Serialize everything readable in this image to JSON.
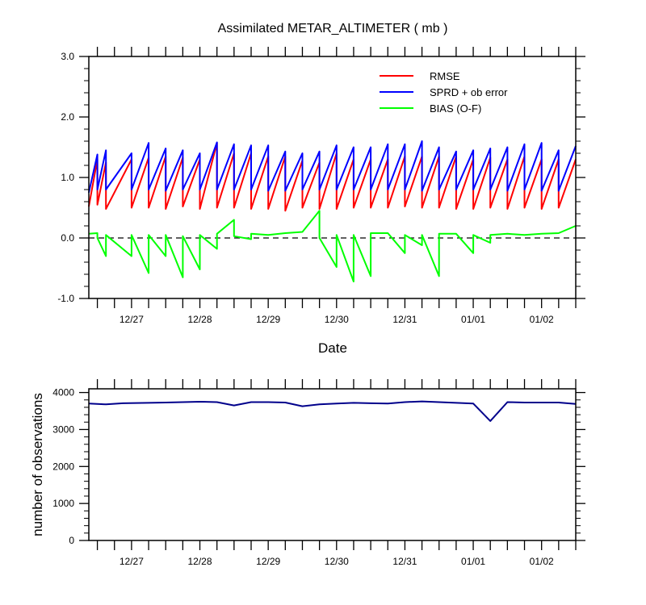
{
  "chart_data": [
    {
      "type": "line",
      "title": "Assimilated METAR_ALTIMETER ( mb )",
      "xlabel": "Date",
      "ylabel": "",
      "ylim": [
        -1.0,
        3.0
      ],
      "yticks": [
        "-1.0",
        "0.0",
        "1.0",
        "2.0",
        "3.0"
      ],
      "x_axis_type": "date",
      "xlim": [
        "2020-12-26T09:00",
        "2021-01-02T12:00"
      ],
      "xticks": [
        {
          "label": "12/27",
          "x": "2020-12-27T00:00"
        },
        {
          "label": "12/28",
          "x": "2020-12-28T00:00"
        },
        {
          "label": "12/29",
          "x": "2020-12-29T00:00"
        },
        {
          "label": "12/30",
          "x": "2020-12-30T00:00"
        },
        {
          "label": "12/31",
          "x": "2020-12-31T00:00"
        },
        {
          "label": "01/01",
          "x": "2021-01-01T00:00"
        },
        {
          "label": "01/02",
          "x": "2021-01-02T00:00"
        }
      ],
      "reference_line": {
        "y": 0.0,
        "style": "dashed"
      },
      "legend_position": "top-right",
      "series": [
        {
          "name": "RMSE",
          "color": "#ff0000",
          "points": [
            [
              "2020-12-26T09:00",
              0.52
            ],
            [
              "2020-12-26T12:00",
              1.3
            ],
            [
              "2020-12-26T12:00",
              0.55
            ],
            [
              "2020-12-26T15:00",
              1.25
            ],
            [
              "2020-12-26T15:00",
              0.48
            ],
            [
              "2020-12-27T00:00",
              1.3
            ],
            [
              "2020-12-27T00:00",
              0.5
            ],
            [
              "2020-12-27T06:00",
              1.33
            ],
            [
              "2020-12-27T06:00",
              0.5
            ],
            [
              "2020-12-27T12:00",
              1.35
            ],
            [
              "2020-12-27T12:00",
              0.48
            ],
            [
              "2020-12-27T18:00",
              1.33
            ],
            [
              "2020-12-27T18:00",
              0.52
            ],
            [
              "2020-12-28T00:00",
              1.3
            ],
            [
              "2020-12-28T00:00",
              0.48
            ],
            [
              "2020-12-28T06:00",
              1.57
            ],
            [
              "2020-12-28T06:00",
              0.5
            ],
            [
              "2020-12-28T12:00",
              1.4
            ],
            [
              "2020-12-28T12:00",
              0.5
            ],
            [
              "2020-12-28T18:00",
              1.4
            ],
            [
              "2020-12-28T18:00",
              0.48
            ],
            [
              "2020-12-29T00:00",
              1.35
            ],
            [
              "2020-12-29T00:00",
              0.48
            ],
            [
              "2020-12-29T06:00",
              1.35
            ],
            [
              "2020-12-29T06:00",
              0.45
            ],
            [
              "2020-12-29T12:00",
              1.28
            ],
            [
              "2020-12-29T12:00",
              0.5
            ],
            [
              "2020-12-29T18:00",
              1.25
            ],
            [
              "2020-12-29T18:00",
              0.48
            ],
            [
              "2020-12-30T00:00",
              1.4
            ],
            [
              "2020-12-30T00:00",
              0.48
            ],
            [
              "2020-12-30T06:00",
              1.3
            ],
            [
              "2020-12-30T06:00",
              0.5
            ],
            [
              "2020-12-30T12:00",
              1.3
            ],
            [
              "2020-12-30T12:00",
              0.5
            ],
            [
              "2020-12-30T18:00",
              1.3
            ],
            [
              "2020-12-30T18:00",
              0.5
            ],
            [
              "2020-12-31T00:00",
              1.35
            ],
            [
              "2020-12-31T00:00",
              0.52
            ],
            [
              "2020-12-31T06:00",
              1.35
            ],
            [
              "2020-12-31T06:00",
              0.5
            ],
            [
              "2020-12-31T12:00",
              1.35
            ],
            [
              "2020-12-31T12:00",
              0.5
            ],
            [
              "2020-12-31T18:00",
              1.35
            ],
            [
              "2020-12-31T18:00",
              0.48
            ],
            [
              "2021-01-01T00:00",
              1.3
            ],
            [
              "2021-01-01T00:00",
              0.48
            ],
            [
              "2021-01-01T06:00",
              1.33
            ],
            [
              "2021-01-01T06:00",
              0.5
            ],
            [
              "2021-01-01T12:00",
              1.3
            ],
            [
              "2021-01-01T12:00",
              0.48
            ],
            [
              "2021-01-01T18:00",
              1.35
            ],
            [
              "2021-01-01T18:00",
              0.5
            ],
            [
              "2021-01-02T00:00",
              1.3
            ],
            [
              "2021-01-02T00:00",
              0.48
            ],
            [
              "2021-01-02T06:00",
              1.3
            ],
            [
              "2021-01-02T06:00",
              0.5
            ],
            [
              "2021-01-02T12:00",
              1.3
            ]
          ]
        },
        {
          "name": "SPRD + ob error",
          "color": "#0000ff",
          "points": [
            [
              "2020-12-26T09:00",
              0.75
            ],
            [
              "2020-12-26T12:00",
              1.38
            ],
            [
              "2020-12-26T12:00",
              0.8
            ],
            [
              "2020-12-26T15:00",
              1.45
            ],
            [
              "2020-12-26T15:00",
              0.8
            ],
            [
              "2020-12-27T00:00",
              1.4
            ],
            [
              "2020-12-27T00:00",
              0.8
            ],
            [
              "2020-12-27T06:00",
              1.57
            ],
            [
              "2020-12-27T06:00",
              0.8
            ],
            [
              "2020-12-27T12:00",
              1.48
            ],
            [
              "2020-12-27T12:00",
              0.78
            ],
            [
              "2020-12-27T18:00",
              1.45
            ],
            [
              "2020-12-27T18:00",
              0.8
            ],
            [
              "2020-12-28T00:00",
              1.4
            ],
            [
              "2020-12-28T00:00",
              0.8
            ],
            [
              "2020-12-28T06:00",
              1.58
            ],
            [
              "2020-12-28T06:00",
              0.8
            ],
            [
              "2020-12-28T12:00",
              1.55
            ],
            [
              "2020-12-28T12:00",
              0.8
            ],
            [
              "2020-12-28T18:00",
              1.53
            ],
            [
              "2020-12-28T18:00",
              0.8
            ],
            [
              "2020-12-29T00:00",
              1.53
            ],
            [
              "2020-12-29T00:00",
              0.78
            ],
            [
              "2020-12-29T06:00",
              1.43
            ],
            [
              "2020-12-29T06:00",
              0.78
            ],
            [
              "2020-12-29T12:00",
              1.4
            ],
            [
              "2020-12-29T12:00",
              0.8
            ],
            [
              "2020-12-29T18:00",
              1.43
            ],
            [
              "2020-12-29T18:00",
              0.8
            ],
            [
              "2020-12-30T00:00",
              1.53
            ],
            [
              "2020-12-30T00:00",
              0.8
            ],
            [
              "2020-12-30T06:00",
              1.5
            ],
            [
              "2020-12-30T06:00",
              0.8
            ],
            [
              "2020-12-30T12:00",
              1.5
            ],
            [
              "2020-12-30T12:00",
              0.8
            ],
            [
              "2020-12-30T18:00",
              1.55
            ],
            [
              "2020-12-30T18:00",
              0.8
            ],
            [
              "2020-12-31T00:00",
              1.55
            ],
            [
              "2020-12-31T00:00",
              0.8
            ],
            [
              "2020-12-31T06:00",
              1.6
            ],
            [
              "2020-12-31T06:00",
              0.78
            ],
            [
              "2020-12-31T12:00",
              1.5
            ],
            [
              "2020-12-31T12:00",
              0.8
            ],
            [
              "2020-12-31T18:00",
              1.43
            ],
            [
              "2020-12-31T18:00",
              0.8
            ],
            [
              "2021-01-01T00:00",
              1.45
            ],
            [
              "2021-01-01T00:00",
              0.8
            ],
            [
              "2021-01-01T06:00",
              1.48
            ],
            [
              "2021-01-01T06:00",
              0.8
            ],
            [
              "2021-01-01T12:00",
              1.5
            ],
            [
              "2021-01-01T12:00",
              0.78
            ],
            [
              "2021-01-01T18:00",
              1.55
            ],
            [
              "2021-01-01T18:00",
              0.8
            ],
            [
              "2021-01-02T00:00",
              1.57
            ],
            [
              "2021-01-02T00:00",
              0.78
            ],
            [
              "2021-01-02T06:00",
              1.45
            ],
            [
              "2021-01-02T06:00",
              0.78
            ],
            [
              "2021-01-02T12:00",
              1.52
            ]
          ]
        },
        {
          "name": "BIAS (O-F)",
          "color": "#00ff00",
          "points": [
            [
              "2020-12-26T09:00",
              0.07
            ],
            [
              "2020-12-26T12:00",
              0.08
            ],
            [
              "2020-12-26T12:00",
              0.0
            ],
            [
              "2020-12-26T15:00",
              -0.3
            ],
            [
              "2020-12-26T15:00",
              0.05
            ],
            [
              "2020-12-27T00:00",
              -0.3
            ],
            [
              "2020-12-27T00:00",
              0.05
            ],
            [
              "2020-12-27T06:00",
              -0.58
            ],
            [
              "2020-12-27T06:00",
              0.05
            ],
            [
              "2020-12-27T12:00",
              -0.3
            ],
            [
              "2020-12-27T12:00",
              0.05
            ],
            [
              "2020-12-27T18:00",
              -0.65
            ],
            [
              "2020-12-27T18:00",
              0.03
            ],
            [
              "2020-12-28T00:00",
              -0.52
            ],
            [
              "2020-12-28T00:00",
              0.05
            ],
            [
              "2020-12-28T06:00",
              -0.18
            ],
            [
              "2020-12-28T06:00",
              0.07
            ],
            [
              "2020-12-28T12:00",
              0.3
            ],
            [
              "2020-12-28T12:00",
              0.03
            ],
            [
              "2020-12-28T18:00",
              -0.02
            ],
            [
              "2020-12-28T18:00",
              0.07
            ],
            [
              "2020-12-29T00:00",
              0.05
            ],
            [
              "2020-12-29T06:00",
              0.08
            ],
            [
              "2020-12-29T12:00",
              0.1
            ],
            [
              "2020-12-29T18:00",
              0.45
            ],
            [
              "2020-12-29T18:00",
              0.0
            ],
            [
              "2020-12-30T00:00",
              -0.48
            ],
            [
              "2020-12-30T00:00",
              0.05
            ],
            [
              "2020-12-30T06:00",
              -0.72
            ],
            [
              "2020-12-30T06:00",
              0.05
            ],
            [
              "2020-12-30T12:00",
              -0.63
            ],
            [
              "2020-12-30T12:00",
              0.08
            ],
            [
              "2020-12-30T18:00",
              0.08
            ],
            [
              "2020-12-31T00:00",
              -0.25
            ],
            [
              "2020-12-31T00:00",
              0.05
            ],
            [
              "2020-12-31T06:00",
              -0.12
            ],
            [
              "2020-12-31T06:00",
              0.05
            ],
            [
              "2020-12-31T12:00",
              -0.63
            ],
            [
              "2020-12-31T12:00",
              0.07
            ],
            [
              "2020-12-31T18:00",
              0.07
            ],
            [
              "2021-01-01T00:00",
              -0.25
            ],
            [
              "2021-01-01T00:00",
              0.05
            ],
            [
              "2021-01-01T06:00",
              -0.08
            ],
            [
              "2021-01-01T06:00",
              0.05
            ],
            [
              "2021-01-01T12:00",
              0.07
            ],
            [
              "2021-01-01T18:00",
              0.05
            ],
            [
              "2021-01-02T00:00",
              0.07
            ],
            [
              "2021-01-02T06:00",
              0.08
            ],
            [
              "2021-01-02T12:00",
              0.2
            ]
          ]
        }
      ]
    },
    {
      "type": "line",
      "title": "",
      "xlabel": "",
      "ylabel": "number of observations",
      "ylim": [
        0,
        4100
      ],
      "yticks": [
        "0",
        "1000",
        "2000",
        "3000",
        "4000"
      ],
      "x_axis_type": "date",
      "xlim": [
        "2020-12-26T09:00",
        "2021-01-02T12:00"
      ],
      "xticks": [
        {
          "label": "12/27",
          "x": "2020-12-27T00:00"
        },
        {
          "label": "12/28",
          "x": "2020-12-28T00:00"
        },
        {
          "label": "12/29",
          "x": "2020-12-29T00:00"
        },
        {
          "label": "12/30",
          "x": "2020-12-30T00:00"
        },
        {
          "label": "12/31",
          "x": "2020-12-31T00:00"
        },
        {
          "label": "01/01",
          "x": "2021-01-01T00:00"
        },
        {
          "label": "01/02",
          "x": "2021-01-02T00:00"
        }
      ],
      "series": [
        {
          "color": "#00008b",
          "points": [
            [
              "2020-12-26T09:00",
              3700
            ],
            [
              "2020-12-26T15:00",
              3680
            ],
            [
              "2020-12-26T21:00",
              3710
            ],
            [
              "2020-12-27T06:00",
              3720
            ],
            [
              "2020-12-27T12:00",
              3730
            ],
            [
              "2020-12-27T18:00",
              3740
            ],
            [
              "2020-12-28T00:00",
              3750
            ],
            [
              "2020-12-28T06:00",
              3740
            ],
            [
              "2020-12-28T12:00",
              3650
            ],
            [
              "2020-12-28T18:00",
              3740
            ],
            [
              "2020-12-29T00:00",
              3740
            ],
            [
              "2020-12-29T06:00",
              3730
            ],
            [
              "2020-12-29T12:00",
              3630
            ],
            [
              "2020-12-29T18:00",
              3680
            ],
            [
              "2020-12-30T00:00",
              3700
            ],
            [
              "2020-12-30T06:00",
              3720
            ],
            [
              "2020-12-30T12:00",
              3710
            ],
            [
              "2020-12-30T18:00",
              3700
            ],
            [
              "2020-12-31T00:00",
              3740
            ],
            [
              "2020-12-31T06:00",
              3760
            ],
            [
              "2020-12-31T12:00",
              3740
            ],
            [
              "2020-12-31T18:00",
              3720
            ],
            [
              "2021-01-01T00:00",
              3700
            ],
            [
              "2021-01-01T06:00",
              3230
            ],
            [
              "2021-01-01T12:00",
              3740
            ],
            [
              "2021-01-01T18:00",
              3730
            ],
            [
              "2021-01-02T00:00",
              3730
            ],
            [
              "2021-01-02T06:00",
              3730
            ],
            [
              "2021-01-02T12:00",
              3690
            ]
          ]
        }
      ]
    }
  ]
}
